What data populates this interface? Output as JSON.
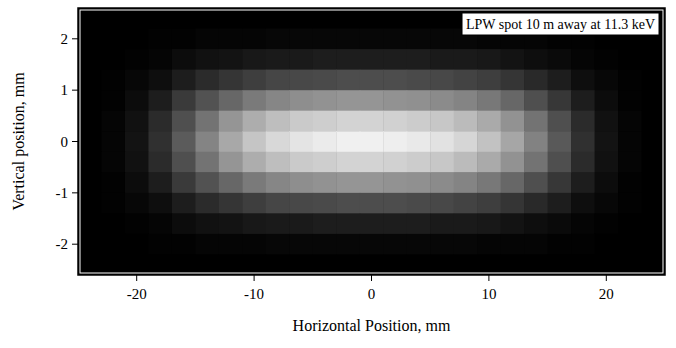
{
  "chart_data": {
    "type": "heatmap",
    "annotation": "LPW spot 10 m away at 11.3 keV",
    "x_label": "Horizontal Position, mm",
    "y_label": "Vertical position, mm",
    "xlim": [
      -25,
      25
    ],
    "ylim": [
      -2.6,
      2.6
    ],
    "xticks": [
      -20,
      -10,
      0,
      10,
      20
    ],
    "yticks": [
      -2,
      -1,
      0,
      1,
      2
    ],
    "zlim": [
      0,
      100
    ],
    "x": [
      -24,
      -22,
      -20,
      -18,
      -16,
      -14,
      -12,
      -10,
      -8,
      -6,
      -4,
      -2,
      0,
      2,
      4,
      6,
      8,
      10,
      12,
      14,
      16,
      18,
      20,
      22,
      24
    ],
    "y": [
      2.4,
      2.0,
      1.6,
      1.2,
      0.8,
      0.4,
      0,
      -0.4,
      -0.8,
      -1.2,
      -1.6,
      -2.0,
      -2.4
    ],
    "cells": [
      [
        0,
        0,
        0,
        0,
        0,
        0,
        0,
        0,
        0,
        0,
        0,
        0,
        0,
        0,
        0,
        0,
        0,
        0,
        0,
        0,
        0,
        0,
        0,
        0,
        0
      ],
      [
        0,
        0,
        0,
        1,
        1,
        2,
        2,
        2,
        3,
        3,
        3,
        3,
        3,
        3,
        3,
        3,
        3,
        2,
        2,
        2,
        1,
        1,
        0,
        0,
        0
      ],
      [
        0,
        0,
        1,
        2,
        5,
        7,
        8,
        10,
        11,
        11,
        12,
        12,
        12,
        12,
        12,
        11,
        11,
        10,
        8,
        6,
        4,
        2,
        1,
        0,
        0
      ],
      [
        0,
        1,
        3,
        6,
        12,
        18,
        22,
        26,
        29,
        30,
        31,
        32,
        32,
        32,
        31,
        30,
        28,
        26,
        22,
        17,
        12,
        6,
        3,
        1,
        0
      ],
      [
        0,
        1,
        5,
        12,
        24,
        34,
        43,
        51,
        56,
        59,
        61,
        62,
        62,
        61,
        60,
        58,
        55,
        50,
        43,
        33,
        23,
        12,
        5,
        1,
        0
      ],
      [
        0,
        2,
        7,
        18,
        33,
        48,
        62,
        72,
        79,
        84,
        86,
        88,
        88,
        87,
        85,
        83,
        78,
        71,
        61,
        48,
        33,
        18,
        7,
        2,
        0
      ],
      [
        0,
        2,
        8,
        20,
        38,
        55,
        70,
        82,
        90,
        95,
        98,
        100,
        100,
        99,
        97,
        94,
        89,
        81,
        69,
        54,
        37,
        20,
        8,
        2,
        0
      ],
      [
        0,
        2,
        7,
        18,
        33,
        48,
        62,
        72,
        79,
        84,
        86,
        88,
        88,
        87,
        85,
        83,
        78,
        71,
        61,
        48,
        33,
        18,
        7,
        2,
        0
      ],
      [
        0,
        1,
        5,
        12,
        24,
        34,
        43,
        51,
        56,
        59,
        61,
        62,
        62,
        61,
        60,
        58,
        55,
        50,
        43,
        33,
        23,
        12,
        5,
        1,
        0
      ],
      [
        0,
        1,
        3,
        6,
        12,
        18,
        22,
        26,
        29,
        30,
        31,
        32,
        32,
        32,
        31,
        30,
        28,
        26,
        22,
        17,
        12,
        6,
        3,
        1,
        0
      ],
      [
        0,
        0,
        1,
        2,
        5,
        7,
        8,
        10,
        11,
        11,
        12,
        12,
        12,
        12,
        12,
        11,
        11,
        10,
        8,
        6,
        4,
        2,
        1,
        0,
        0
      ],
      [
        0,
        0,
        0,
        1,
        1,
        2,
        2,
        2,
        3,
        3,
        3,
        3,
        3,
        3,
        3,
        3,
        3,
        2,
        2,
        2,
        1,
        1,
        0,
        0,
        0
      ],
      [
        0,
        0,
        0,
        0,
        0,
        0,
        0,
        0,
        0,
        0,
        0,
        0,
        0,
        0,
        0,
        0,
        0,
        0,
        0,
        0,
        0,
        0,
        0,
        0,
        0
      ]
    ]
  }
}
